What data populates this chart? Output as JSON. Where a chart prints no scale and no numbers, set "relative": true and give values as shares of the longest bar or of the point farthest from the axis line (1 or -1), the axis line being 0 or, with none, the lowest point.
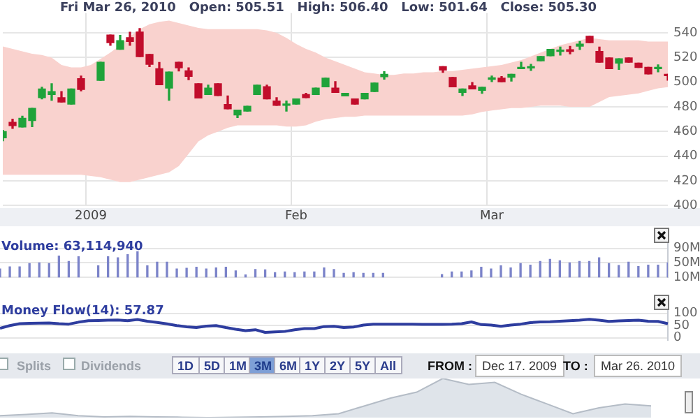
{
  "chart_data": [
    {
      "type": "candlestick",
      "title": "Fri Mar 26, 2010   Open: 505.51   High: 506.40   Low: 501.64   Close: 505.30",
      "categories": [
        null,
        null,
        null,
        null,
        null,
        null,
        null,
        null,
        null,
        "2009",
        null,
        null,
        null,
        null,
        null,
        null,
        null,
        null,
        null,
        null,
        null,
        null,
        null,
        null,
        null,
        null,
        null,
        null,
        null,
        null,
        "Feb",
        null,
        null,
        null,
        null,
        null,
        null,
        null,
        null,
        null,
        null,
        null,
        null,
        null,
        null,
        null,
        null,
        null,
        null,
        null,
        "Mar",
        null,
        null,
        null,
        null,
        null,
        null,
        null,
        null,
        null,
        null,
        null,
        null,
        null,
        null,
        null,
        null,
        null,
        null
      ],
      "ohlc": [
        [
          455,
          461,
          452.5,
          460
        ],
        [
          467.5,
          470,
          462.6,
          464.8
        ],
        [
          463.7,
          472.4,
          463.7,
          470.7
        ],
        [
          469,
          478.8,
          464,
          478.8
        ],
        [
          487.5,
          496,
          486.5,
          494.5
        ],
        [
          490,
          498.7,
          485.4,
          492.4
        ],
        [
          487.5,
          492.4,
          484,
          484
        ],
        [
          482.3,
          494.5,
          482.3,
          494.5
        ],
        [
          502.9,
          505,
          493,
          494.2
        ],
        null,
        [
          501.5,
          516.2,
          501.5,
          516.2
        ],
        [
          538.2,
          538.2,
          530,
          532
        ],
        [
          526.7,
          538,
          526.7,
          533.7
        ],
        [
          536.1,
          540.5,
          530,
          533
        ],
        [
          540.7,
          543.5,
          520.8,
          520.8
        ],
        [
          522.5,
          522.5,
          512.7,
          514.5
        ],
        [
          511,
          516,
          498,
          498
        ],
        [
          495.2,
          508.2,
          485.4,
          508.2
        ],
        [
          516.2,
          516.2,
          509.2,
          511.7
        ],
        [
          509.2,
          511.7,
          502,
          504.7
        ],
        [
          498.7,
          498.7,
          487.2,
          487.2
        ],
        [
          490,
          497.6,
          490,
          495.2
        ],
        [
          498.7,
          498.7,
          489.2,
          489.2
        ],
        [
          481.9,
          488.9,
          478.4,
          478.4
        ],
        [
          473.5,
          477.4,
          471.4,
          477.4
        ],
        [
          476.6,
          480.5,
          476.6,
          480.5
        ],
        [
          490,
          497.6,
          490,
          497.6
        ],
        [
          496.3,
          497.6,
          486.5,
          486.5
        ],
        [
          484.7,
          487.5,
          481.2,
          481.2
        ],
        [
          481.2,
          484.7,
          476.6,
          481.9
        ],
        [
          482.3,
          486.5,
          482.3,
          486.5
        ],
        [
          490,
          491,
          487.5,
          487.5
        ],
        [
          490,
          495.2,
          490,
          495.2
        ],
        [
          496.3,
          503.3,
          496.3,
          503.3
        ],
        [
          495.2,
          500.5,
          491.7,
          491.7
        ],
        [
          488.9,
          491,
          488.9,
          491
        ],
        [
          486.5,
          486.5,
          482.3,
          482.3
        ],
        [
          486.5,
          491,
          486.5,
          491
        ],
        [
          492.4,
          499.4,
          492.4,
          499.4
        ],
        [
          504.5,
          508.5,
          502.5,
          506.4
        ],
        null,
        null,
        null,
        null,
        null,
        [
          512.7,
          512.7,
          508,
          509.9
        ],
        [
          503.9,
          503.9,
          496.3,
          496.3
        ],
        [
          491.7,
          494.5,
          489.2,
          494.5
        ],
        [
          497,
          499.8,
          494.5,
          494.5
        ],
        [
          493.5,
          495.9,
          491,
          495.9
        ],
        [
          502.4,
          505,
          500.5,
          502.9
        ],
        [
          503.3,
          504.6,
          500.4,
          500.4
        ],
        [
          504,
          506.4,
          501,
          506.4
        ],
        [
          511,
          516.2,
          511,
          512
        ],
        [
          511.5,
          514.5,
          509.5,
          512.7
        ],
        [
          517.3,
          520.8,
          517.3,
          520.8
        ],
        [
          521.5,
          526.7,
          521.5,
          526.7
        ],
        [
          525,
          528.5,
          522,
          525.6
        ],
        [
          526.4,
          529,
          523,
          525
        ],
        [
          529.2,
          533,
          526.5,
          530.9
        ],
        [
          537.2,
          537.2,
          532,
          532
        ],
        [
          525,
          528.5,
          516.2,
          516.2
        ],
        [
          519.7,
          519.7,
          511,
          511
        ],
        [
          515.5,
          519,
          510.4,
          519
        ],
        [
          519.7,
          519.7,
          516.2,
          516.2
        ],
        [
          515.5,
          515.5,
          512,
          512
        ],
        [
          512,
          512,
          506.8,
          506.8
        ],
        [
          511,
          514,
          508.5,
          511.8
        ],
        [
          505.51,
          506.4,
          501.64,
          505.3
        ]
      ],
      "series": [
        {
          "type": "line",
          "color": "#f9d2ce",
          "values": [
            null,
            null,
            null,
            null,
            null,
            null,
            null,
            null,
            null,
            null,
            null,
            null,
            null,
            null,
            null,
            null,
            null,
            null,
            null,
            null,
            null,
            null,
            null,
            null,
            null,
            null,
            null,
            null,
            null,
            null,
            null,
            null,
            null,
            null,
            null,
            null,
            null,
            null,
            null,
            null,
            null,
            null,
            null,
            null,
            null,
            null,
            null,
            null,
            null,
            null,
            null,
            null,
            null,
            null,
            null,
            null,
            null,
            null,
            null,
            null,
            null,
            null,
            null,
            null,
            null,
            null,
            null,
            null,
            null
          ],
          "upper": [
            529,
            527,
            525,
            523,
            522,
            520,
            514,
            512,
            512,
            514,
            519,
            524,
            530,
            537,
            543,
            547,
            549,
            550,
            548,
            546,
            544,
            543,
            543,
            543,
            543,
            543,
            543,
            542,
            540,
            536,
            531,
            527,
            524,
            520,
            517,
            514,
            511,
            508,
            507,
            506,
            506,
            507,
            507,
            508,
            508,
            509,
            509,
            510,
            511,
            512,
            513,
            514,
            516,
            518,
            521,
            524,
            527,
            530,
            532,
            534,
            536,
            535,
            534,
            534,
            534,
            534,
            533,
            533,
            533
          ],
          "lower": [
            425,
            425,
            425,
            425,
            425,
            425,
            425,
            425,
            425,
            424,
            423,
            421,
            419,
            419,
            421,
            423,
            425,
            427,
            432,
            442,
            452,
            457,
            460,
            463,
            465,
            465,
            465,
            465,
            465,
            464,
            464,
            465,
            468,
            470,
            471,
            472,
            472,
            473,
            473,
            473,
            473,
            473,
            473,
            473,
            473,
            473,
            473,
            473,
            474,
            476,
            477,
            478,
            479,
            479,
            480,
            481,
            481,
            481,
            480,
            480,
            480,
            484,
            488,
            489,
            490,
            491,
            493,
            495,
            496
          ]
        }
      ],
      "ylim": [
        400,
        556
      ],
      "yticks": [
        400,
        420,
        440,
        460,
        480,
        500,
        520,
        540
      ],
      "grid": true
    },
    {
      "type": "bar",
      "title": "Volume: 63,114,940",
      "color": "#7b83c9",
      "categories": [
        null,
        null,
        null,
        null,
        null,
        null,
        null,
        null,
        null,
        null,
        null,
        null,
        null,
        null,
        null,
        null,
        null,
        null,
        null,
        null,
        null,
        null,
        null,
        null,
        null,
        null,
        null,
        null,
        null,
        null,
        null,
        null,
        null,
        null,
        null,
        null,
        null,
        null,
        null,
        null,
        null,
        null,
        null,
        null,
        null,
        null,
        null,
        null,
        null,
        null,
        null,
        null,
        null,
        null,
        null,
        null,
        null,
        null,
        null,
        null,
        null,
        null,
        null,
        null,
        null,
        null,
        null,
        null,
        null
      ],
      "values": [
        33,
        39,
        39,
        48,
        50,
        48,
        69,
        54,
        67,
        null,
        42,
        67,
        64,
        73,
        81,
        42,
        52,
        52,
        33,
        35,
        38,
        33,
        36,
        38,
        28,
        17,
        32,
        31,
        23,
        25,
        23,
        25,
        25,
        36,
        32,
        21,
        23,
        21,
        21,
        21,
        null,
        null,
        null,
        null,
        null,
        18,
        25,
        25,
        28,
        38,
        33,
        42,
        36,
        48,
        44,
        54,
        60,
        56,
        50,
        54,
        54,
        64,
        48,
        43,
        52,
        40,
        44,
        44,
        50
      ],
      "ylim": [
        10,
        115
      ],
      "yticks": [
        {
          "value": 10,
          "label": "10M"
        },
        {
          "value": 50,
          "label": "50M"
        },
        {
          "value": 90,
          "label": "90M"
        }
      ],
      "grid": "y"
    },
    {
      "type": "line",
      "title": "Money Flow(14): 57.87",
      "color": "#2e3d9f",
      "marker": "none",
      "categories": [
        null,
        null,
        null,
        null,
        null,
        null,
        null,
        null,
        null,
        null,
        null,
        null,
        null,
        null,
        null,
        null,
        null,
        null,
        null,
        null,
        null,
        null,
        null,
        null,
        null,
        null,
        null,
        null,
        null,
        null,
        null,
        null,
        null,
        null,
        null,
        null,
        null,
        null,
        null,
        null,
        null,
        null,
        null,
        null,
        null,
        null,
        null,
        null,
        null,
        null,
        null,
        null,
        null,
        null,
        null,
        null,
        null,
        null,
        null,
        null,
        null,
        null,
        null,
        null,
        null,
        null,
        null,
        null,
        null
      ],
      "values": [
        39,
        50,
        58,
        59,
        60,
        61,
        58,
        56,
        64,
        70,
        71,
        72,
        73,
        70,
        75,
        68,
        63,
        57,
        50,
        45,
        42,
        48,
        50,
        42,
        35,
        29,
        33,
        22,
        24,
        26,
        33,
        38,
        38,
        46,
        47,
        42,
        44,
        52,
        56,
        56,
        56,
        56,
        56,
        55,
        55,
        55,
        56,
        58,
        65,
        54,
        52,
        47,
        52,
        56,
        62,
        65,
        66,
        68,
        70,
        72,
        76,
        72,
        67,
        69,
        71,
        72,
        68,
        67,
        57.87
      ],
      "ylim": [
        -10,
        140
      ],
      "yticks": [
        0,
        50,
        100
      ],
      "grid": "y"
    },
    {
      "type": "area",
      "relative": true,
      "color": "#dfe4ea",
      "categories": [
        null,
        null,
        null,
        null,
        null,
        null,
        null,
        null,
        null,
        null,
        null,
        null,
        null,
        null,
        null,
        null,
        null,
        null,
        null,
        null,
        null,
        null,
        null,
        null,
        null,
        null
      ],
      "values": [
        0.05,
        0.08,
        0.12,
        0.05,
        0.02,
        0.03,
        0.02,
        0.01,
        0,
        0.01,
        0.02,
        0.03,
        0.05,
        0.1,
        0.3,
        0.5,
        0.65,
        1,
        0.85,
        0.9,
        0.6,
        0.35,
        0.1,
        0.25,
        0.35,
        0.3
      ],
      "annotations": [
        "Splits",
        "Dividends",
        "1D",
        "5D",
        "1M",
        "3M",
        "6M",
        "1Y",
        "2Y",
        "5Y",
        "All",
        "FROM :",
        "Dec 17. 2009",
        "TO :",
        "Mar 26. 2010"
      ]
    }
  ]
}
